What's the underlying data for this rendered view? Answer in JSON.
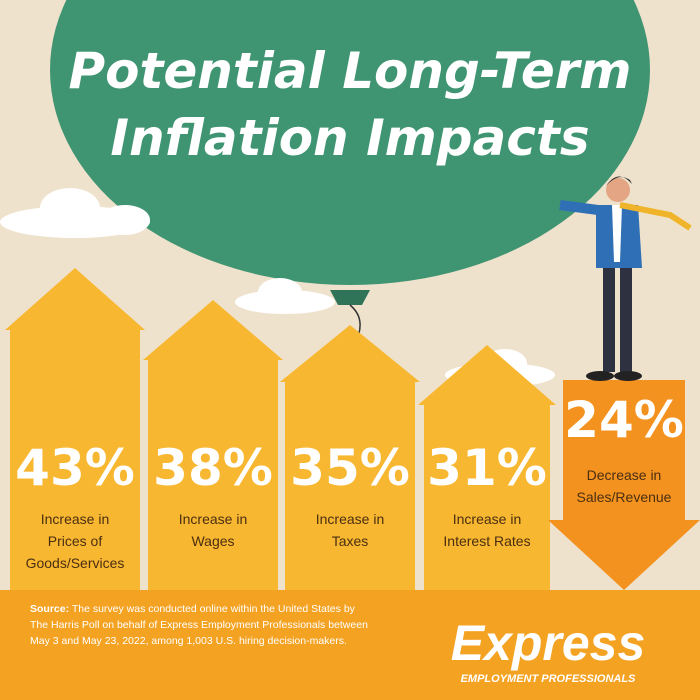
{
  "title": {
    "lines": [
      "Potential Long-Term",
      "Inflation Impacts"
    ]
  },
  "items": [
    {
      "value": "43%",
      "label": [
        "Increase in",
        "Prices of",
        "Goods/Services"
      ]
    },
    {
      "value": "38%",
      "label": [
        "Increase in",
        "Wages"
      ]
    },
    {
      "value": "35%",
      "label": [
        "Increase in",
        "Taxes"
      ]
    },
    {
      "value": "31%",
      "label": [
        "Increase in",
        "Interest Rates"
      ]
    },
    {
      "value": "24%",
      "label": [
        "Decrease in",
        "Sales/Revenue"
      ]
    }
  ],
  "source": {
    "lead": "Source:",
    "lines": [
      "The survey was conducted online within the United States by",
      "The Harris Poll on behalf of Express Employment Professionals between",
      "May 3 and May 23, 2022, among 1,003 U.S. hiring decision-makers."
    ]
  },
  "logo": {
    "name": "Express",
    "tagline": "EMPLOYMENT PROFESSIONALS"
  }
}
